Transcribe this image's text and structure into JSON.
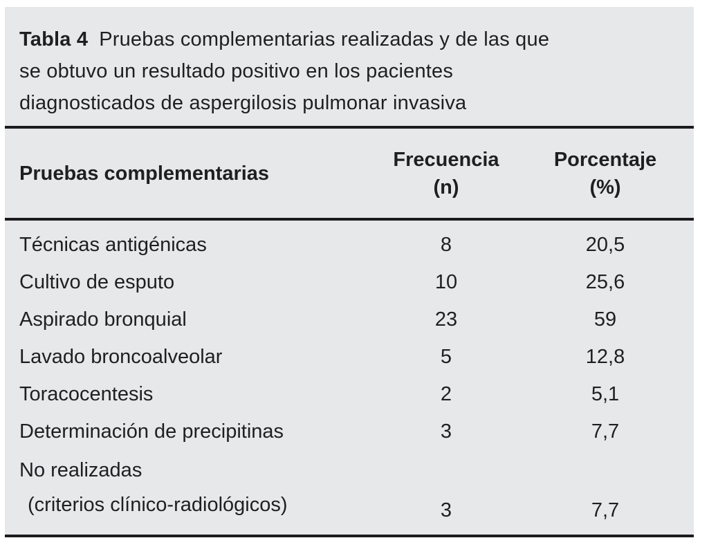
{
  "colors": {
    "panel_background": "#e7e8ea",
    "text": "#1f1f21",
    "rule": "#1b1b1d",
    "page_background": "#ffffff"
  },
  "table": {
    "caption_label": "Tabla 4",
    "caption_text": "Pruebas complementarias realizadas y de las que\nse obtuvo un resultado positivo en los pacientes\ndiagnosticados de aspergilosis pulmonar invasiva",
    "columns": {
      "col1": "Pruebas complementarias",
      "col2": "Frecuencia\n(n)",
      "col3": "Porcentaje\n(%)"
    },
    "rows": [
      {
        "label": "Técnicas antigénicas",
        "freq": "8",
        "pct": "20,5"
      },
      {
        "label": "Cultivo de esputo",
        "freq": "10",
        "pct": "25,6"
      },
      {
        "label": "Aspirado bronquial",
        "freq": "23",
        "pct": "59"
      },
      {
        "label": "Lavado broncoalveolar",
        "freq": "5",
        "pct": "12,8"
      },
      {
        "label": "Toracocentesis",
        "freq": "2",
        "pct": "5,1"
      },
      {
        "label": "Determinación de precipitinas",
        "freq": "3",
        "pct": "7,7"
      },
      {
        "label": "No realizadas",
        "label2": "(criterios clínico-radiológicos)",
        "freq": "3",
        "pct": "7,7"
      }
    ]
  }
}
